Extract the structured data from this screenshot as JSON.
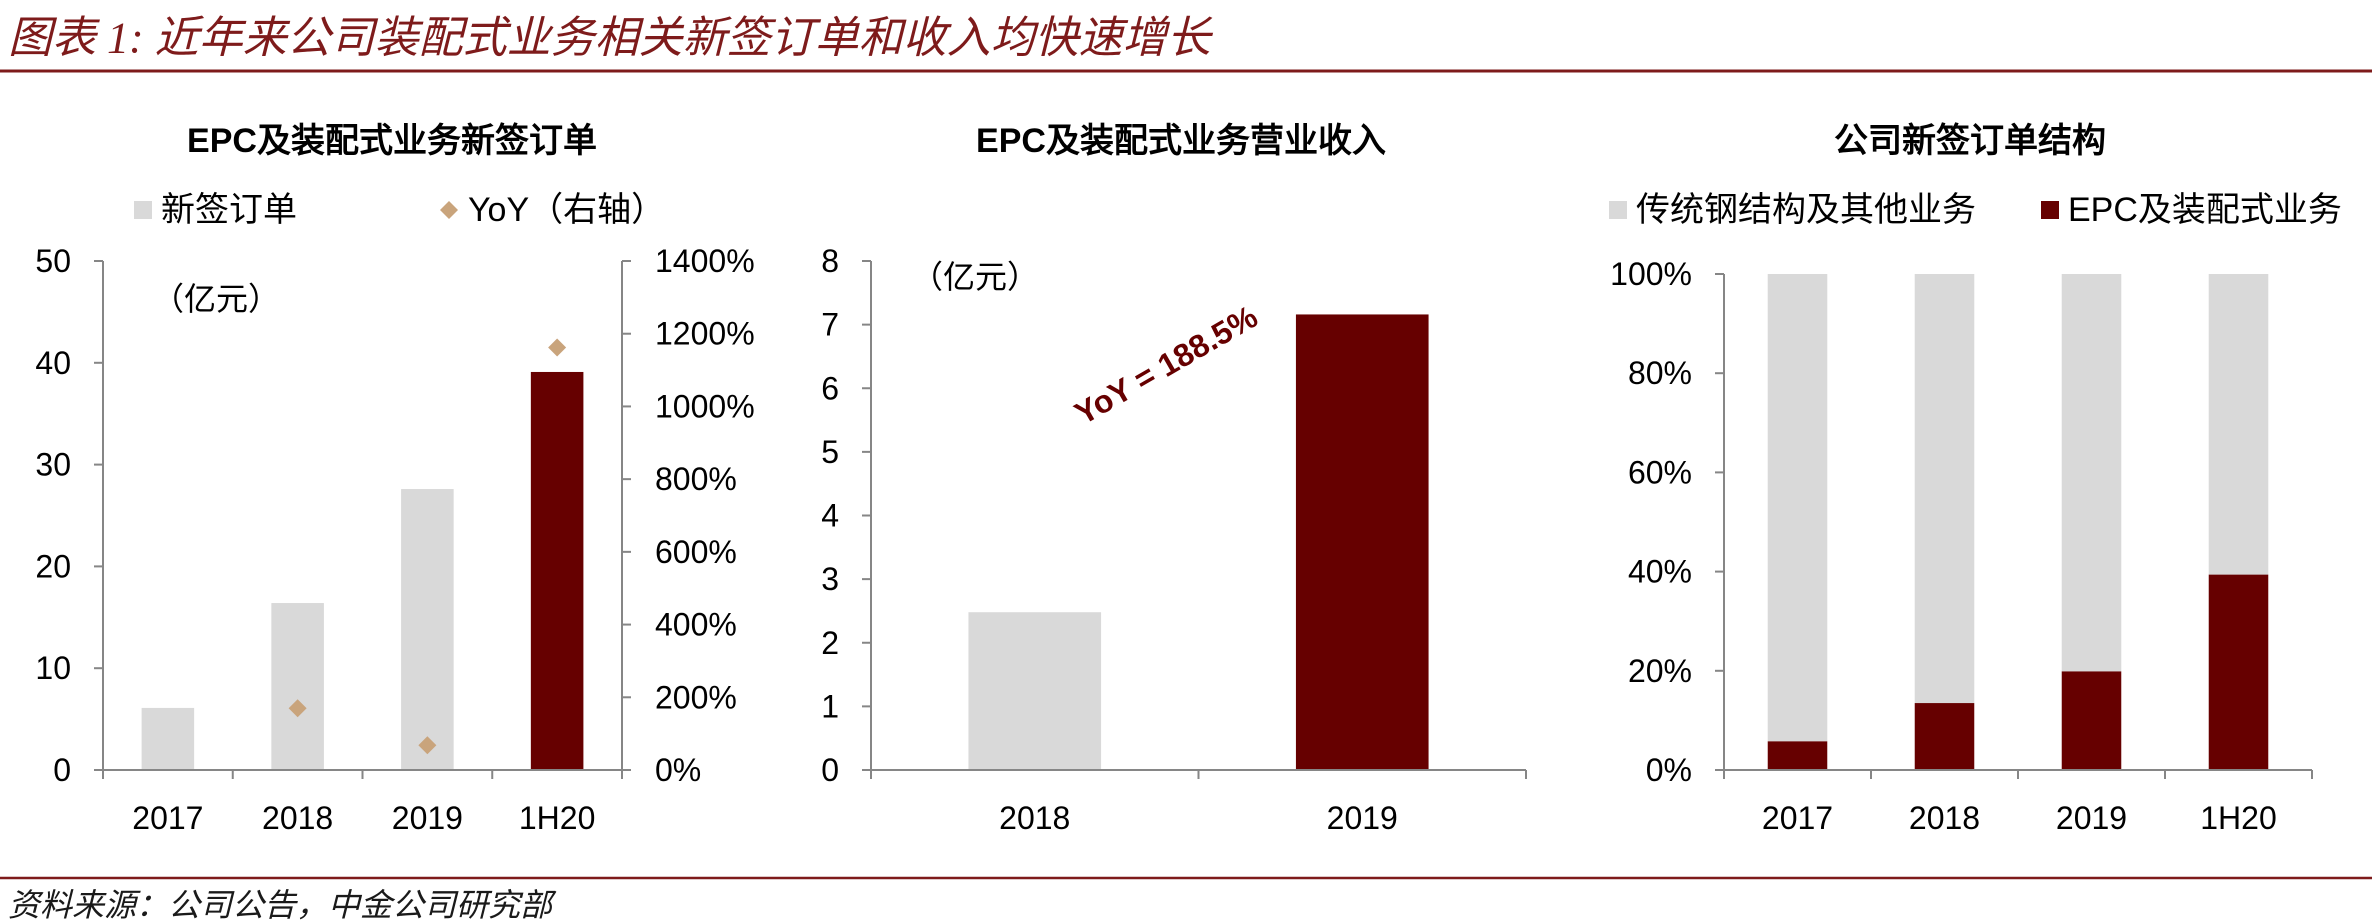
{
  "header": {
    "title": "图表 1: 近年来公司装配式业务相关新签订单和收入均快速增长"
  },
  "footer": {
    "source": "资料来源：公司公告，中金公司研究部"
  },
  "colors": {
    "accent": "#7E1B1B",
    "axis": "#868686"
  },
  "chart_data": [
    {
      "type": "bar",
      "title": "EPC及装配式业务新签订单",
      "unit_label": "（亿元）",
      "legend": "top",
      "grid": false,
      "categories": [
        "2017",
        "2018",
        "2019",
        "1H20"
      ],
      "ylim": [
        0,
        50
      ],
      "yticks": [
        0,
        10,
        20,
        30,
        40,
        50
      ],
      "y2lim": [
        0,
        1400
      ],
      "y2ticks": [
        "0%",
        "200%",
        "400%",
        "600%",
        "800%",
        "1000%",
        "1200%",
        "1400%"
      ],
      "series": [
        {
          "name": "新签订单",
          "kind": "bar",
          "values": [
            6.1,
            16.4,
            27.6,
            39.1
          ],
          "color": "#D9D9D9",
          "bar_colors": [
            "#D9D9D9",
            "#D9D9D9",
            "#D9D9D9",
            "#660000"
          ]
        },
        {
          "name": "YoY（右轴）",
          "kind": "scatter",
          "marker": "diamond",
          "y_axis": "right",
          "values": [
            null,
            170,
            68,
            1162
          ],
          "color": "#C9A47C"
        }
      ]
    },
    {
      "type": "bar",
      "title": "EPC及装配式业务营业收入",
      "unit_label": "（亿元）",
      "grid": false,
      "categories": [
        "2018",
        "2019"
      ],
      "ylim": [
        0,
        8
      ],
      "yticks": [
        0,
        1,
        2,
        3,
        4,
        5,
        6,
        7,
        8
      ],
      "values": [
        2.48,
        7.16
      ],
      "bar_colors": [
        "#D9D9D9",
        "#660000"
      ],
      "annotations": [
        {
          "text": "YoY = 188.5%",
          "color": "#660000"
        }
      ]
    },
    {
      "type": "bar",
      "stacked": "percent",
      "title": "公司新签订单结构",
      "legend": "top",
      "grid": false,
      "categories": [
        "2017",
        "2018",
        "2019",
        "1H20"
      ],
      "ylim": [
        0,
        100
      ],
      "yticks": [
        "0%",
        "20%",
        "40%",
        "60%",
        "80%",
        "100%"
      ],
      "series": [
        {
          "name": "传统钢结构及其他业务",
          "values": [
            94.2,
            86.5,
            80.1,
            60.6
          ],
          "color": "#D9D9D9"
        },
        {
          "name": "EPC及装配式业务",
          "values": [
            5.8,
            13.5,
            19.9,
            39.4
          ],
          "color": "#660000"
        }
      ]
    }
  ]
}
